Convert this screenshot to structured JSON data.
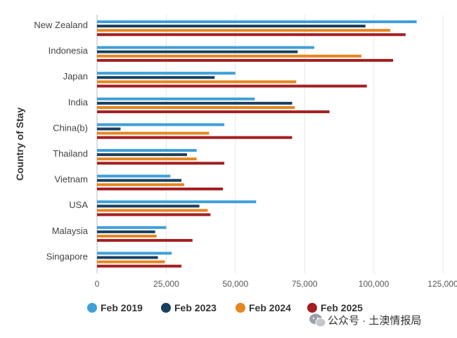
{
  "chart_data": {
    "type": "bar",
    "orientation": "horizontal",
    "ylabel": "Country of Stay",
    "xlabel": "",
    "xlim": [
      0,
      125000
    ],
    "x_ticks": [
      0,
      25000,
      50000,
      75000,
      100000,
      125000
    ],
    "x_tick_labels": [
      "0",
      "25,000",
      "50,000",
      "75,000",
      "100,000",
      "125,000"
    ],
    "grid": true,
    "legend_position": "bottom",
    "categories": [
      "New Zealand",
      "Indonesia",
      "Japan",
      "India",
      "China(b)",
      "Thailand",
      "Vietnam",
      "USA",
      "Malaysia",
      "Singapore"
    ],
    "series": [
      {
        "name": "Feb 2019",
        "color": "#3fa0d8",
        "values": [
          115500,
          78500,
          50000,
          57000,
          46000,
          36000,
          26500,
          57500,
          25000,
          27000
        ]
      },
      {
        "name": "Feb 2023",
        "color": "#1b3f5e",
        "values": [
          97000,
          72500,
          42500,
          70500,
          8500,
          32500,
          30500,
          37000,
          21000,
          22000
        ]
      },
      {
        "name": "Feb 2024",
        "color": "#e6861f",
        "values": [
          106000,
          95500,
          72000,
          71500,
          40500,
          36000,
          31500,
          40000,
          21500,
          24500
        ]
      },
      {
        "name": "Feb 2025",
        "color": "#a31e22",
        "values": [
          111500,
          107000,
          97500,
          84000,
          70500,
          46000,
          45500,
          41000,
          34500,
          30500
        ]
      }
    ]
  },
  "watermark": {
    "text": "公众号 · 土澳情报局",
    "icon": "wechat-icon"
  }
}
